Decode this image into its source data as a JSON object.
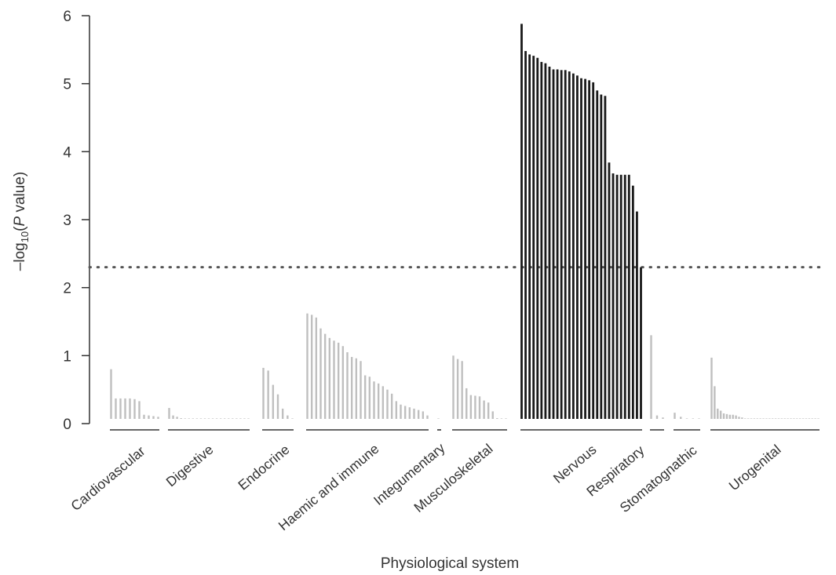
{
  "chart_data": {
    "type": "bar",
    "xlabel": "Physiological system",
    "ylabel": {
      "prefix": "–log",
      "subscript": "10",
      "open": "(",
      "italic": "P",
      "rest": " value)"
    },
    "ylim": [
      0,
      6
    ],
    "yticks": [
      "0",
      "1",
      "2",
      "3",
      "4",
      "5",
      "6"
    ],
    "threshold": 2.3,
    "colors": {
      "nonsignificant": "#bfbfbf",
      "significant": "#1a1a1a",
      "axis": "#333333",
      "threshold_line": "#555555"
    },
    "groups": [
      {
        "name": "Cardiovascular",
        "significant": false,
        "values": [
          0.8,
          0.37,
          0.37,
          0.37,
          0.37,
          0.36,
          0.33,
          0.13,
          0.12,
          0.11,
          0.1
        ]
      },
      {
        "name": "Digestive",
        "significant": false,
        "values": [
          0.23,
          0.12,
          0.1,
          0.08,
          0.06,
          0.04,
          0.02,
          0.02,
          0.02,
          0.02,
          0.01,
          0.01,
          0.01,
          0.01,
          0.01,
          0.01,
          0.01,
          0.01,
          0.01,
          0.01,
          0.01
        ]
      },
      {
        "name": "Endocrine",
        "significant": false,
        "values": [
          0.82,
          0.78,
          0.57,
          0.43,
          0.22,
          0.12,
          0.02
        ]
      },
      {
        "name": "Haemic and immune",
        "significant": false,
        "values": [
          1.62,
          1.6,
          1.56,
          1.4,
          1.32,
          1.26,
          1.22,
          1.19,
          1.14,
          1.05,
          0.98,
          0.96,
          0.92,
          0.71,
          0.69,
          0.62,
          0.59,
          0.55,
          0.5,
          0.44,
          0.33,
          0.28,
          0.26,
          0.24,
          0.22,
          0.2,
          0.18,
          0.12
        ]
      },
      {
        "name": "Integumentary",
        "significant": false,
        "values": [
          0.05
        ]
      },
      {
        "name": "Musculoskeletal",
        "significant": false,
        "values": [
          1.0,
          0.95,
          0.92,
          0.52,
          0.42,
          0.41,
          0.4,
          0.34,
          0.31,
          0.18,
          0.08,
          0.06,
          0.05
        ]
      },
      {
        "name": "Nervous",
        "significant": true,
        "values": [
          5.88,
          5.48,
          5.43,
          5.41,
          5.38,
          5.32,
          5.3,
          5.25,
          5.21,
          5.21,
          5.2,
          5.2,
          5.18,
          5.15,
          5.12,
          5.08,
          5.07,
          5.05,
          5.02,
          4.9,
          4.84,
          4.82,
          3.84,
          3.68,
          3.66,
          3.66,
          3.66,
          3.66,
          3.5,
          3.12,
          2.3
        ]
      },
      {
        "name": "Respiratory",
        "significant": false,
        "values": [
          1.3,
          0.12,
          0.09
        ]
      },
      {
        "name": "Stomatognathic",
        "significant": false,
        "values": [
          0.16,
          0.1,
          0.03,
          0.02,
          0.02
        ]
      },
      {
        "name": "Urogenital",
        "significant": false,
        "values": [
          0.97,
          0.55,
          0.22,
          0.19,
          0.15,
          0.14,
          0.13,
          0.13,
          0.12,
          0.1,
          0.09,
          0.07,
          0.06,
          0.05,
          0.05,
          0.04,
          0.03,
          0.02,
          0.02,
          0.02,
          0.02,
          0.01,
          0.01,
          0.01,
          0.01,
          0.01,
          0.01,
          0.01,
          0.01,
          0.01,
          0.01,
          0.01,
          0.01,
          0.01,
          0.01,
          0.01
        ]
      }
    ]
  }
}
